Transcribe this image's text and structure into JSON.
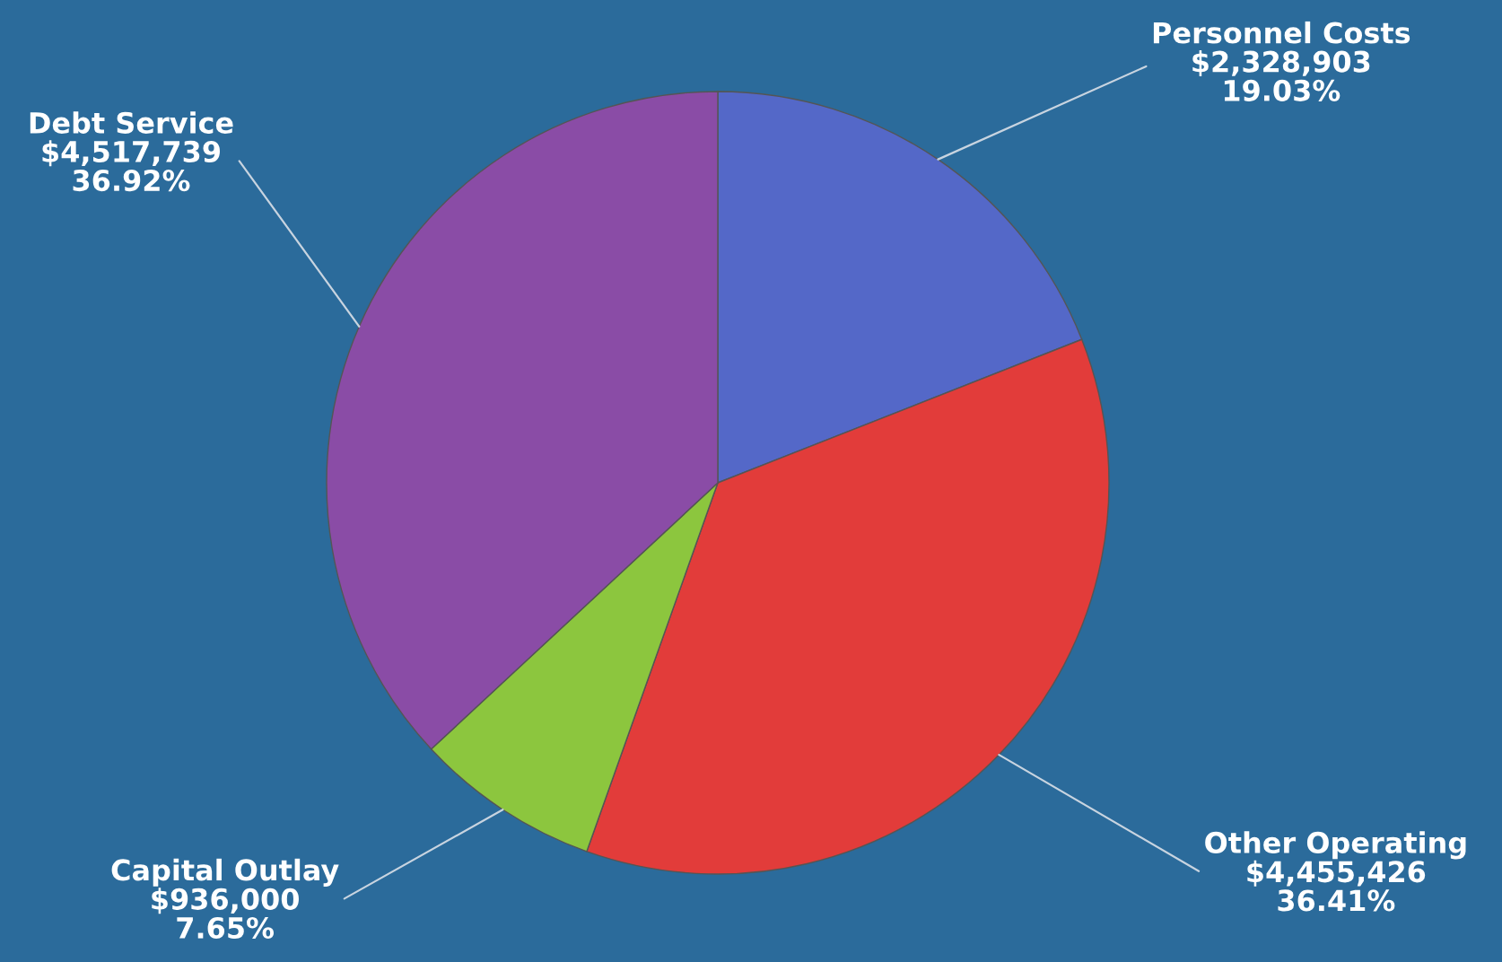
{
  "chart_data": {
    "type": "pie",
    "categories": [
      "Personnel Costs",
      "Other Operating",
      "Capital Outlay",
      "Debt Service"
    ],
    "values": [
      2328903,
      4455426,
      936000,
      4517739
    ],
    "value_labels": [
      "$2,328,903\n19.03%",
      "$4,455,426\n36.41%",
      "$936,000\n7.65%",
      "$4,517,739\n36.92%"
    ],
    "colors": [
      "#5468c8",
      "#e23c3a",
      "#8cc63e",
      "#8a4ca6"
    ],
    "legend": false
  }
}
